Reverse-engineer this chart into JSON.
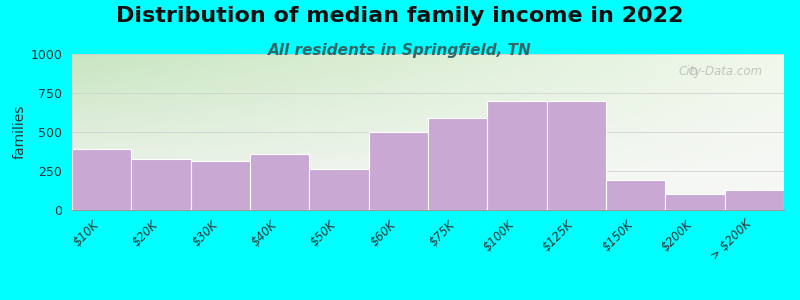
{
  "title": "Distribution of median family income in 2022",
  "subtitle": "All residents in Springfield, TN",
  "ylabel": "families",
  "categories": [
    "$10K",
    "$20K",
    "$30K",
    "$40K",
    "$50K",
    "$60K",
    "$75K",
    "$100K",
    "$125K",
    "$150K",
    "$200K",
    "> $200K"
  ],
  "values": [
    390,
    330,
    315,
    360,
    260,
    500,
    590,
    700,
    700,
    195,
    105,
    130
  ],
  "bar_color": "#c9a8d4",
  "bar_edge_color": "#ffffff",
  "ylim": [
    0,
    1000
  ],
  "yticks": [
    0,
    250,
    500,
    750,
    1000
  ],
  "background_color": "#00ffff",
  "plot_bg_topleft": "#c8e6c0",
  "plot_bg_topright": "#e8f4e0",
  "plot_bg_bottom": "#f5f5f5",
  "title_fontsize": 16,
  "subtitle_fontsize": 11,
  "subtitle_color": "#336666",
  "ylabel_fontsize": 10,
  "watermark_text": "City-Data.com",
  "bar_width": 1.0
}
